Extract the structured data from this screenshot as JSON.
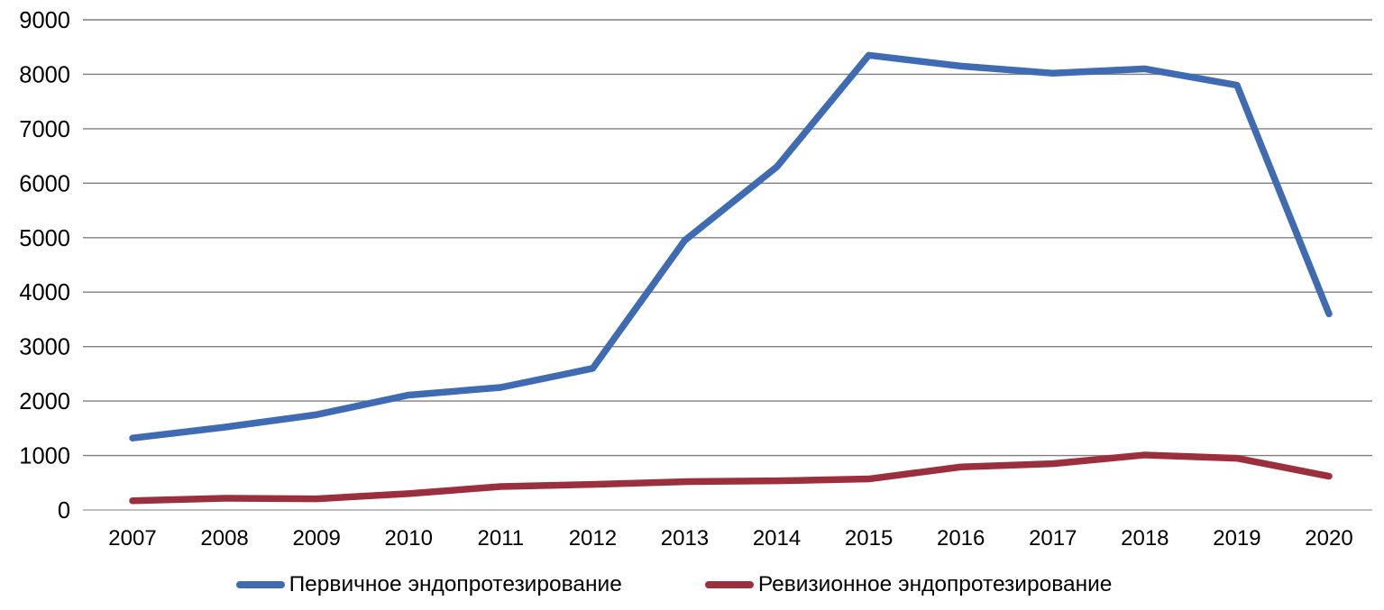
{
  "chart_data": {
    "type": "line",
    "title": "",
    "xlabel": "",
    "ylabel": "",
    "categories": [
      "2007",
      "2008",
      "2009",
      "2010",
      "2011",
      "2012",
      "2013",
      "2014",
      "2015",
      "2016",
      "2017",
      "2018",
      "2019",
      "2020"
    ],
    "series": [
      {
        "key": "primary",
        "name": "Первичное эндопротезирование",
        "color": "#3E6BB2",
        "values": [
          1320,
          1520,
          1750,
          2110,
          2250,
          2600,
          4950,
          6300,
          8350,
          8150,
          8020,
          8100,
          7800,
          3600
        ]
      },
      {
        "key": "revision",
        "name": "Ревизионное эндопротезирование",
        "color": "#9C2F3E",
        "values": [
          170,
          215,
          205,
          300,
          430,
          470,
          520,
          535,
          570,
          790,
          850,
          1010,
          950,
          620
        ]
      }
    ],
    "ylim": [
      0,
      9000
    ],
    "y_ticks": [
      "0",
      "1000",
      "2000",
      "3000",
      "4000",
      "5000",
      "6000",
      "7000",
      "8000",
      "9000"
    ],
    "grid": "horizontal-only",
    "legend_position": "bottom"
  },
  "colors": {
    "gridline": "#7F7F7F",
    "zero_axis_line": "#BFBFBF",
    "tick_text": "#000000",
    "background": "#FFFFFF"
  }
}
